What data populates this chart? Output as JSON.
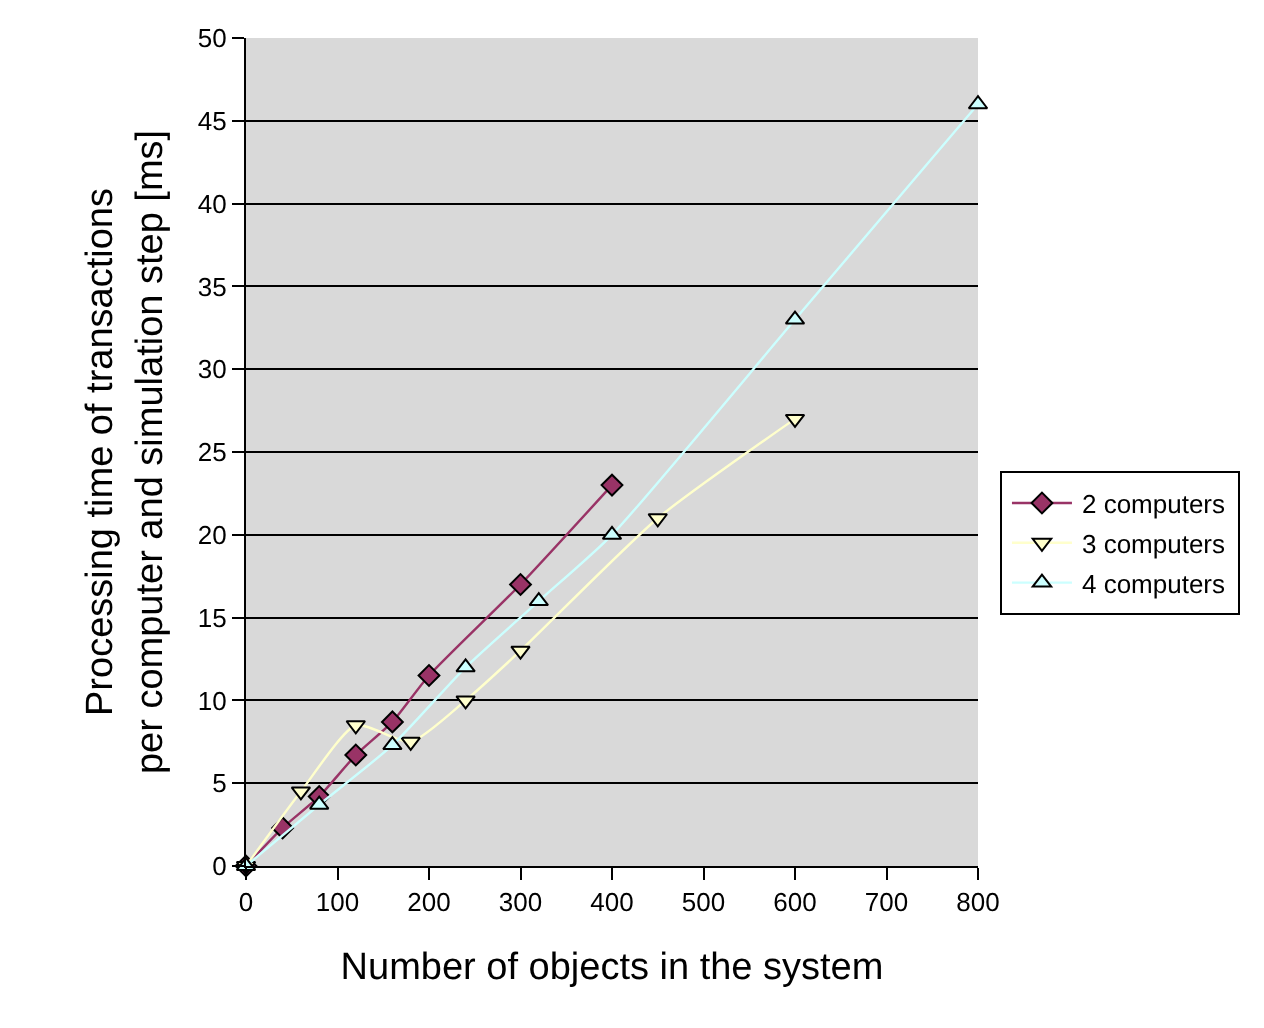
{
  "chart_data": {
    "type": "line",
    "xlabel": "Number of objects in the system",
    "ylabel": "Processing time of transactions\nper computer and simulation step [ms]",
    "xlim": [
      0,
      800
    ],
    "xticks": [
      0,
      100,
      200,
      300,
      400,
      500,
      600,
      700,
      800
    ],
    "ylim": [
      0,
      50
    ],
    "yticks": [
      0,
      5,
      10,
      15,
      20,
      25,
      30,
      35,
      40,
      45,
      50
    ],
    "grid": "y",
    "legend": "right",
    "series": [
      {
        "name": "2 computers",
        "color": "#993366",
        "marker": "diamond",
        "x": [
          0,
          40,
          80,
          120,
          160,
          200,
          300,
          400
        ],
        "values": [
          0,
          2.3,
          4.2,
          6.7,
          8.7,
          11.5,
          17,
          23
        ]
      },
      {
        "name": "3 computers",
        "color": "#ffffcc",
        "marker": "triangle-down",
        "x": [
          0,
          60,
          120,
          180,
          240,
          300,
          450,
          600
        ],
        "values": [
          0,
          4.5,
          8.5,
          7.5,
          10,
          13,
          21,
          27
        ]
      },
      {
        "name": "4 computers",
        "color": "#ccffff",
        "marker": "triangle-up",
        "x": [
          0,
          80,
          160,
          240,
          320,
          400,
          600,
          800
        ],
        "values": [
          0,
          3.7,
          7.3,
          12,
          16,
          20,
          33,
          46
        ]
      }
    ]
  }
}
